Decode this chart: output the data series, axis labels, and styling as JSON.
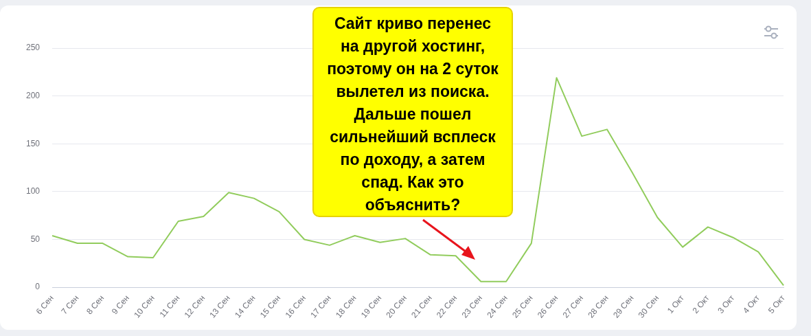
{
  "chart_data": {
    "type": "line",
    "categories": [
      "6 Сен",
      "7 Сен",
      "8 Сен",
      "9 Сен",
      "10 Сен",
      "11 Сен",
      "12 Сен",
      "13 Сен",
      "14 Сен",
      "15 Сен",
      "16 Сен",
      "17 Сен",
      "18 Сен",
      "19 Сен",
      "20 Сен",
      "21 Сен",
      "22 Сен",
      "23 Сен",
      "24 Сен",
      "25 Сен",
      "26 Сен",
      "27 Сен",
      "28 Сен",
      "29 Сен",
      "30 Сен",
      "1 Окт",
      "2 Окт",
      "3 Окт",
      "4 Окт",
      "5 Окт"
    ],
    "series": [
      {
        "color": "#91cc5c",
        "values": [
          54,
          46,
          46,
          32,
          31,
          69,
          74,
          99,
          93,
          79,
          50,
          44,
          54,
          47,
          51,
          34,
          33,
          6,
          6,
          46,
          219,
          158,
          165,
          120,
          73,
          42,
          63,
          52,
          37,
          2
        ]
      }
    ],
    "ylim": [
      0,
      250
    ],
    "yticks": [
      0,
      50,
      100,
      150,
      200,
      250
    ],
    "grid": "y",
    "legend": false,
    "marker": "none",
    "line_style": "solid",
    "annotations": [
      "Сайт криво перенес на другой хостинг, поэтому он на 2 суток вылетел из поиска. Дальше пошел сильнейший всплеск по доходу, а затем спад. Как это объяснить?"
    ]
  }
}
